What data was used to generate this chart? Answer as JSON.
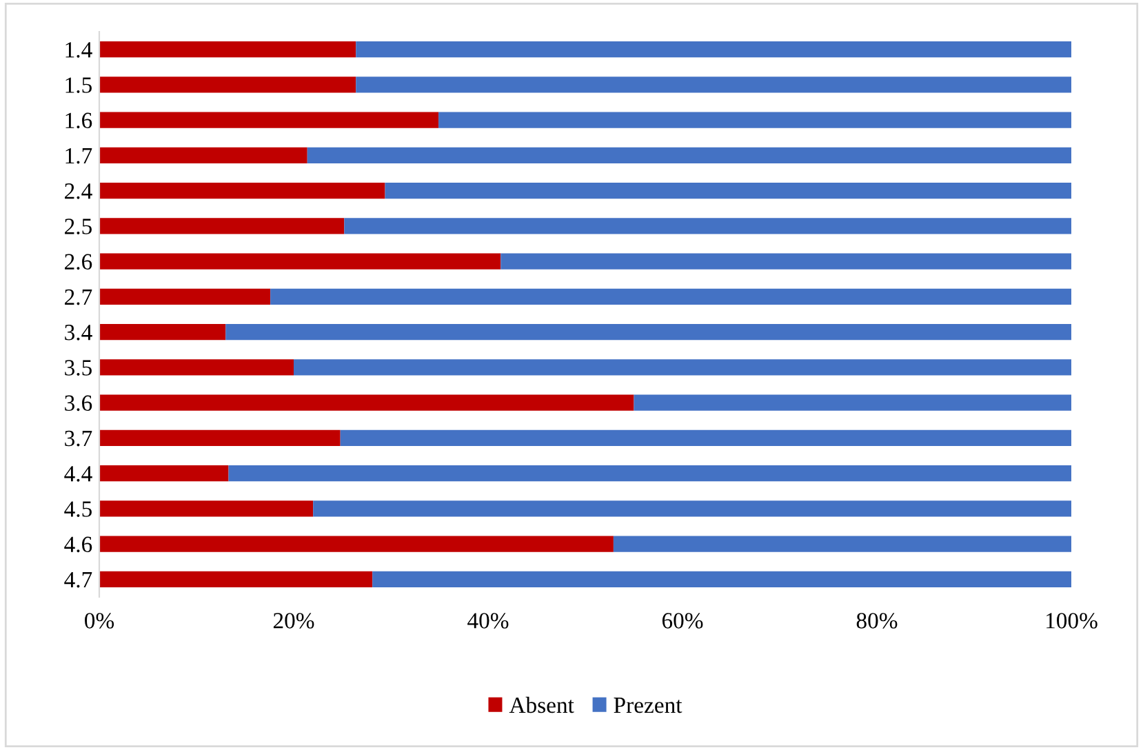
{
  "chart_data": {
    "type": "bar",
    "orientation": "horizontal",
    "stacked": true,
    "categories": [
      "1.4",
      "1.5",
      "1.6",
      "1.7",
      "2.4",
      "2.5",
      "2.6",
      "2.7",
      "3.4",
      "3.5",
      "3.6",
      "3.7",
      "4.4",
      "4.5",
      "4.6",
      "4.7"
    ],
    "series": [
      {
        "name": "Absent",
        "color": "#c00000",
        "values": [
          26.4,
          26.4,
          34.9,
          21.4,
          29.4,
          25.2,
          41.3,
          17.6,
          13.0,
          20.0,
          55.0,
          24.8,
          13.3,
          22.0,
          52.9,
          28.1
        ]
      },
      {
        "name": "Prezent",
        "color": "#4472c4",
        "values": [
          73.6,
          73.6,
          65.1,
          78.6,
          70.6,
          74.8,
          58.7,
          82.4,
          87.0,
          80.0,
          45.0,
          75.2,
          86.7,
          78.0,
          47.1,
          71.9
        ]
      }
    ],
    "xlim": [
      0,
      100
    ],
    "xticks": [
      {
        "value": 0,
        "label": "0%"
      },
      {
        "value": 20,
        "label": "20%"
      },
      {
        "value": 40,
        "label": "40%"
      },
      {
        "value": 60,
        "label": "60%"
      },
      {
        "value": 80,
        "label": "80%"
      },
      {
        "value": 100,
        "label": "100%"
      }
    ],
    "legend": "bottom",
    "grid": false
  }
}
